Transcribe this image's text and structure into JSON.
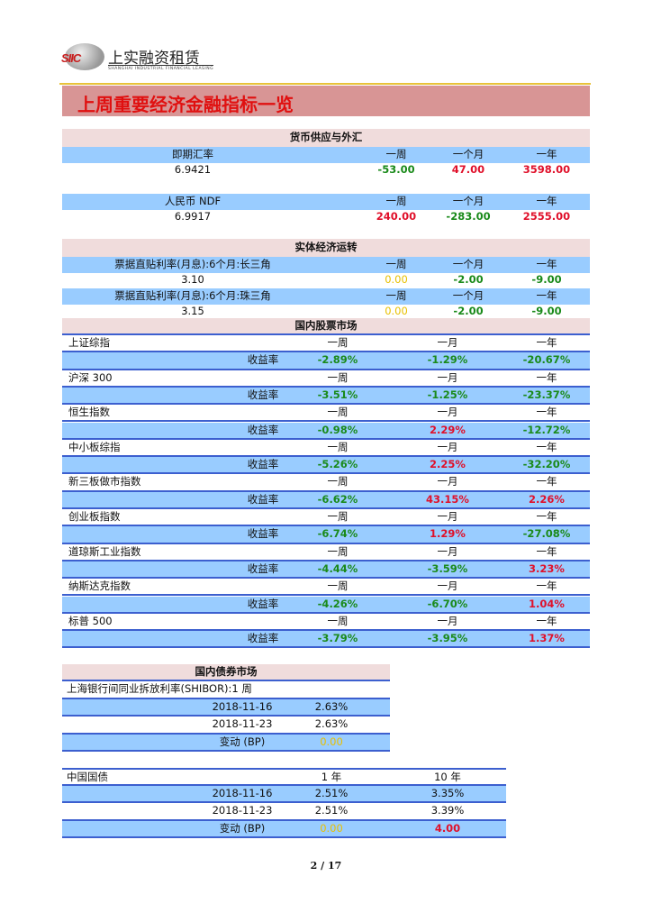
{
  "logo": {
    "cn": "上实融资租赁",
    "en": "SHANGHAI INDUSTRIAL FINANCIAL LEASING",
    "mark": "SIIC"
  },
  "title": "上周重要经济金融指标一览",
  "colors": {
    "up": "#e0102a",
    "down": "#1a8a1a",
    "flat": "#e8c000",
    "header_blue": "#99ccff",
    "section_pink": "#f0dcdc",
    "title_band": "#d89595"
  },
  "money": {
    "section": "货币供应与外汇",
    "blocks": [
      {
        "label": "即期汇率",
        "cols": [
          "一周",
          "一个月",
          "一年"
        ],
        "value": "6.9421",
        "changes": [
          {
            "v": "-53.00",
            "tone": "down"
          },
          {
            "v": "47.00",
            "tone": "up"
          },
          {
            "v": "3598.00",
            "tone": "up"
          }
        ]
      },
      {
        "label": "人民币 NDF",
        "cols": [
          "一周",
          "一个月",
          "一年"
        ],
        "value": "6.9917",
        "changes": [
          {
            "v": "240.00",
            "tone": "up"
          },
          {
            "v": "-283.00",
            "tone": "down"
          },
          {
            "v": "2555.00",
            "tone": "up"
          }
        ]
      }
    ]
  },
  "real": {
    "section": "实体经济运转",
    "blocks": [
      {
        "label": "票据直贴利率(月息):6个月:长三角",
        "cols": [
          "一周",
          "一个月",
          "一年"
        ],
        "value": "3.10",
        "changes": [
          {
            "v": "0.00",
            "tone": "flat"
          },
          {
            "v": "-2.00",
            "tone": "down"
          },
          {
            "v": "-9.00",
            "tone": "down"
          }
        ]
      },
      {
        "label": "票据直贴利率(月息):6个月:珠三角",
        "cols": [
          "一周",
          "一个月",
          "一年"
        ],
        "value": "3.15",
        "changes": [
          {
            "v": "0.00",
            "tone": "flat"
          },
          {
            "v": "-2.00",
            "tone": "down"
          },
          {
            "v": "-9.00",
            "tone": "down"
          }
        ]
      }
    ]
  },
  "stocks": {
    "section": "国内股票市场",
    "cols": [
      "一周",
      "一月",
      "一年"
    ],
    "return_label": "收益率",
    "items": [
      {
        "name": "上证综指",
        "returns": [
          {
            "v": "-2.89%",
            "tone": "down"
          },
          {
            "v": "-1.29%",
            "tone": "down"
          },
          {
            "v": "-20.67%",
            "tone": "down"
          }
        ]
      },
      {
        "name": "沪深 300",
        "returns": [
          {
            "v": "-3.51%",
            "tone": "down"
          },
          {
            "v": "-1.25%",
            "tone": "down"
          },
          {
            "v": "-23.37%",
            "tone": "down"
          }
        ]
      },
      {
        "name": "恒生指数",
        "returns": [
          {
            "v": "-0.98%",
            "tone": "down"
          },
          {
            "v": "2.29%",
            "tone": "up"
          },
          {
            "v": "-12.72%",
            "tone": "down"
          }
        ]
      },
      {
        "name": "中小板综指",
        "returns": [
          {
            "v": "-5.26%",
            "tone": "down"
          },
          {
            "v": "2.25%",
            "tone": "up"
          },
          {
            "v": "-32.20%",
            "tone": "down"
          }
        ]
      },
      {
        "name": "新三板做市指数",
        "returns": [
          {
            "v": "-6.62%",
            "tone": "down"
          },
          {
            "v": "43.15%",
            "tone": "up"
          },
          {
            "v": "2.26%",
            "tone": "up"
          }
        ]
      },
      {
        "name": "创业板指数",
        "returns": [
          {
            "v": "-6.74%",
            "tone": "down"
          },
          {
            "v": "1.29%",
            "tone": "up"
          },
          {
            "v": "-27.08%",
            "tone": "down"
          }
        ]
      },
      {
        "name": "道琼斯工业指数",
        "returns": [
          {
            "v": "-4.44%",
            "tone": "down"
          },
          {
            "v": "-3.59%",
            "tone": "down"
          },
          {
            "v": "3.23%",
            "tone": "up"
          }
        ]
      },
      {
        "name": "纳斯达克指数",
        "returns": [
          {
            "v": "-4.26%",
            "tone": "down"
          },
          {
            "v": "-6.70%",
            "tone": "down"
          },
          {
            "v": "1.04%",
            "tone": "up"
          }
        ]
      },
      {
        "name": "标普 500",
        "returns": [
          {
            "v": "-3.79%",
            "tone": "down"
          },
          {
            "v": "-3.95%",
            "tone": "down"
          },
          {
            "v": "1.37%",
            "tone": "up"
          }
        ]
      }
    ]
  },
  "bonds": {
    "section": "国内债券市场",
    "shibor": {
      "label": "上海银行间同业拆放利率(SHIBOR):1 周",
      "rows": [
        {
          "date": "2018-11-16",
          "v": "2.63%"
        },
        {
          "date": "2018-11-23",
          "v": "2.63%"
        }
      ],
      "change_label": "变动 (BP)",
      "change": {
        "v": "0.00",
        "tone": "flat"
      }
    },
    "govt": {
      "label": "中国国债",
      "cols": [
        "1 年",
        "10 年"
      ],
      "rows": [
        {
          "date": "2018-11-16",
          "v": [
            "2.51%",
            "3.35%"
          ]
        },
        {
          "date": "2018-11-23",
          "v": [
            "2.51%",
            "3.39%"
          ]
        }
      ],
      "change_label": "变动 (BP)",
      "changes": [
        {
          "v": "0.00",
          "tone": "flat"
        },
        {
          "v": "4.00",
          "tone": "up"
        }
      ]
    }
  },
  "page": "2 / 17"
}
